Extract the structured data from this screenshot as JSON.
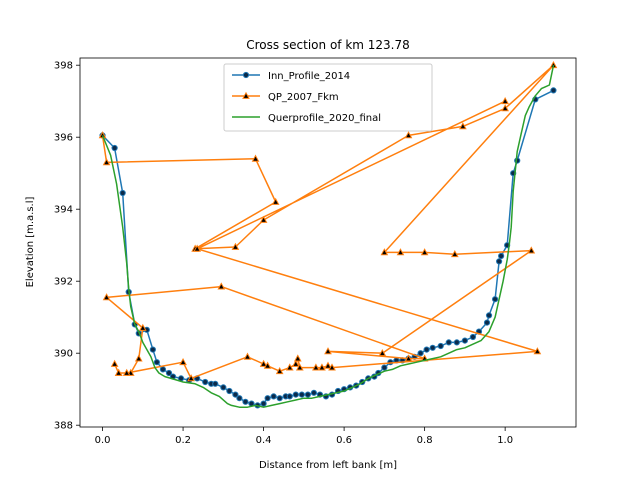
{
  "chart_data": {
    "type": "line",
    "title": "Cross section of km 123.78",
    "xlabel": "Distance from left bank [m]",
    "ylabel": "Elevation [m.a.s.l]",
    "xlim": [
      -0.056,
      1.176
    ],
    "ylim": [
      387.95,
      398.2
    ],
    "xticks": [
      0.0,
      0.2,
      0.4,
      0.6,
      0.8,
      1.0
    ],
    "xtick_labels": [
      "0.0",
      "0.2",
      "0.4",
      "0.6",
      "0.8",
      "1.0"
    ],
    "yticks": [
      388,
      390,
      392,
      394,
      396,
      398
    ],
    "ytick_labels": [
      "388",
      "390",
      "392",
      "394",
      "396",
      "398"
    ],
    "grid": false,
    "legend_position": "top-center",
    "series": [
      {
        "name": "Inn_Profile_2014",
        "color": "#1f77b4",
        "marker": "circle",
        "x": [
          0.0,
          0.03,
          0.05,
          0.065,
          0.08,
          0.09,
          0.11,
          0.125,
          0.135,
          0.15,
          0.165,
          0.175,
          0.195,
          0.215,
          0.235,
          0.255,
          0.27,
          0.28,
          0.3,
          0.315,
          0.33,
          0.34,
          0.355,
          0.37,
          0.385,
          0.4,
          0.41,
          0.425,
          0.44,
          0.455,
          0.465,
          0.48,
          0.495,
          0.51,
          0.525,
          0.54,
          0.555,
          0.57,
          0.585,
          0.6,
          0.615,
          0.63,
          0.645,
          0.66,
          0.675,
          0.685,
          0.7,
          0.715,
          0.73,
          0.745,
          0.76,
          0.775,
          0.79,
          0.805,
          0.82,
          0.84,
          0.86,
          0.88,
          0.9,
          0.92,
          0.935,
          0.955,
          0.96,
          0.975,
          0.985,
          0.99,
          1.005,
          1.02,
          1.03,
          1.075,
          1.12
        ],
        "y": [
          396.05,
          395.7,
          394.45,
          391.7,
          390.8,
          390.55,
          390.65,
          390.1,
          389.75,
          389.55,
          389.45,
          389.35,
          389.3,
          389.25,
          389.3,
          389.2,
          389.15,
          389.15,
          389.05,
          388.95,
          388.85,
          388.75,
          388.65,
          388.6,
          388.55,
          388.6,
          388.75,
          388.8,
          388.75,
          388.8,
          388.8,
          388.85,
          388.85,
          388.85,
          388.9,
          388.85,
          388.8,
          388.85,
          388.95,
          389.0,
          389.05,
          389.1,
          389.2,
          389.3,
          389.35,
          389.45,
          389.6,
          389.75,
          389.8,
          389.8,
          389.85,
          389.9,
          390.0,
          390.1,
          390.15,
          390.2,
          390.3,
          390.3,
          390.35,
          390.45,
          390.6,
          390.85,
          391.05,
          391.5,
          392.55,
          392.7,
          393.0,
          395.0,
          395.35,
          397.05,
          397.3
        ]
      },
      {
        "name": "QP_2007_Fkm",
        "color": "#ff7f0e",
        "marker": "triangle",
        "x": [
          0.0,
          0.01,
          0.38,
          0.43,
          0.23,
          0.33,
          0.4,
          0.76,
          0.895,
          1.0,
          1.12,
          0.7,
          0.74,
          0.8,
          0.875,
          1.065,
          0.695,
          0.56,
          0.76,
          0.8,
          0.295,
          0.01,
          0.1,
          0.09,
          0.07,
          0.04,
          0.03,
          0.04,
          0.06,
          0.2,
          0.22,
          0.36,
          0.4,
          0.41,
          0.44,
          0.465,
          0.48,
          0.485,
          0.49,
          0.53,
          0.545,
          0.56,
          0.57,
          1.08,
          0.235,
          1.0
        ],
        "y": [
          396.05,
          395.3,
          395.4,
          394.2,
          392.9,
          392.95,
          393.7,
          396.05,
          396.3,
          396.8,
          398.0,
          392.8,
          392.8,
          392.8,
          392.75,
          392.85,
          390.0,
          390.05,
          389.85,
          389.85,
          391.85,
          391.55,
          390.7,
          389.85,
          389.45,
          389.45,
          389.7,
          389.45,
          389.45,
          389.75,
          389.3,
          389.9,
          389.7,
          389.65,
          389.5,
          389.6,
          389.7,
          389.85,
          389.6,
          389.6,
          389.6,
          389.65,
          389.6,
          390.05,
          392.9,
          397.0
        ]
      },
      {
        "name": "Querprofile_2020_final",
        "color": "#2ca02c",
        "marker": "none",
        "x": [
          0.0,
          0.02,
          0.035,
          0.05,
          0.055,
          0.06,
          0.065,
          0.07,
          0.08,
          0.09,
          0.1,
          0.12,
          0.13,
          0.14,
          0.155,
          0.17,
          0.2,
          0.23,
          0.25,
          0.27,
          0.29,
          0.31,
          0.32,
          0.34,
          0.36,
          0.38,
          0.4,
          0.42,
          0.44,
          0.46,
          0.48,
          0.5,
          0.52,
          0.54,
          0.56,
          0.58,
          0.6,
          0.62,
          0.64,
          0.66,
          0.68,
          0.7,
          0.72,
          0.74,
          0.76,
          0.78,
          0.8,
          0.82,
          0.84,
          0.86,
          0.88,
          0.9,
          0.92,
          0.94,
          0.96,
          0.975,
          0.985,
          0.995,
          1.005,
          1.01,
          1.015,
          1.02,
          1.03,
          1.04,
          1.05,
          1.06,
          1.07,
          1.075,
          1.09,
          1.1,
          1.11,
          1.12
        ],
        "y": [
          396.05,
          395.5,
          394.7,
          393.5,
          393.0,
          392.5,
          391.8,
          391.3,
          390.8,
          390.6,
          390.3,
          389.9,
          389.6,
          389.45,
          389.35,
          389.3,
          389.2,
          389.15,
          389.05,
          388.9,
          388.8,
          388.6,
          388.55,
          388.5,
          388.5,
          388.55,
          388.5,
          388.55,
          388.6,
          388.65,
          388.7,
          388.75,
          388.75,
          388.8,
          388.85,
          388.9,
          388.95,
          389.05,
          389.15,
          389.3,
          389.4,
          389.5,
          389.55,
          389.65,
          389.7,
          389.75,
          389.8,
          389.85,
          389.9,
          390.0,
          390.1,
          390.15,
          390.25,
          390.35,
          390.6,
          391.0,
          391.5,
          392.0,
          392.6,
          393.0,
          393.5,
          394.5,
          395.6,
          396.1,
          396.6,
          396.85,
          397.05,
          397.15,
          397.35,
          397.4,
          397.45,
          398.0
        ]
      }
    ]
  }
}
